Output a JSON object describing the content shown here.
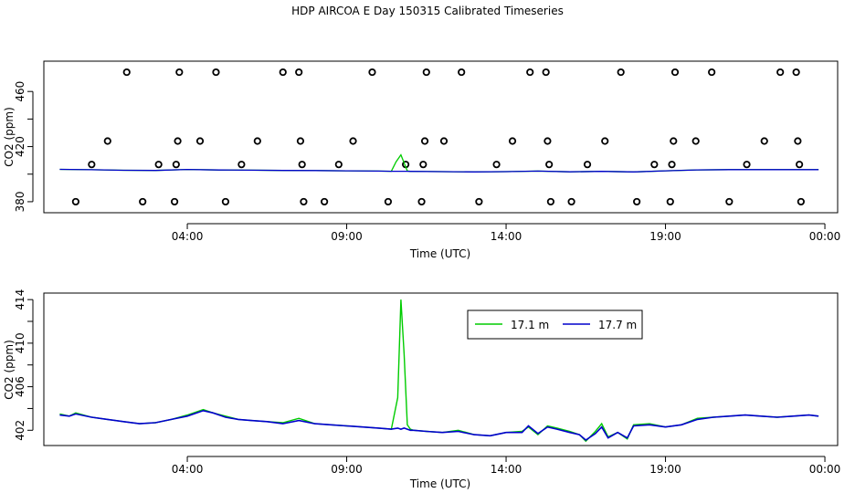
{
  "title": "HDP AIRCOA E  Day 150315  Calibrated Timeseries",
  "colors": {
    "series_a": "#00cc00",
    "series_b": "#0000cc",
    "axis": "#000000",
    "markers": "#000000"
  },
  "chart_data": [
    {
      "type": "scatter+line",
      "panel": "top",
      "xlabel": "Time (UTC)",
      "ylabel": "CO2 (ppm)",
      "xlim": [
        -0.5,
        24.4
      ],
      "ylim": [
        372,
        482
      ],
      "xticks": [
        {
          "value": 4,
          "label": "04:00"
        },
        {
          "value": 9,
          "label": "09:00"
        },
        {
          "value": 14,
          "label": "14:00"
        },
        {
          "value": 19,
          "label": "19:00"
        },
        {
          "value": 24,
          "label": "00:00"
        }
      ],
      "yticks": [
        {
          "value": 380,
          "label": "380"
        },
        {
          "value": 400,
          "label": ""
        },
        {
          "value": 420,
          "label": "420"
        },
        {
          "value": 440,
          "label": ""
        },
        {
          "value": 460,
          "label": "460"
        }
      ],
      "markers": [
        {
          "x": 0.5,
          "y": 380
        },
        {
          "x": 1.0,
          "y": 407
        },
        {
          "x": 1.5,
          "y": 424
        },
        {
          "x": 2.1,
          "y": 474
        },
        {
          "x": 2.6,
          "y": 380
        },
        {
          "x": 3.1,
          "y": 407
        },
        {
          "x": 3.6,
          "y": 380
        },
        {
          "x": 3.65,
          "y": 407
        },
        {
          "x": 3.7,
          "y": 424
        },
        {
          "x": 3.75,
          "y": 474
        },
        {
          "x": 4.4,
          "y": 424
        },
        {
          "x": 4.9,
          "y": 474
        },
        {
          "x": 5.2,
          "y": 380
        },
        {
          "x": 5.7,
          "y": 407
        },
        {
          "x": 6.2,
          "y": 424
        },
        {
          "x": 7.0,
          "y": 474
        },
        {
          "x": 7.5,
          "y": 474
        },
        {
          "x": 7.55,
          "y": 424
        },
        {
          "x": 7.6,
          "y": 407
        },
        {
          "x": 7.65,
          "y": 380
        },
        {
          "x": 8.3,
          "y": 380
        },
        {
          "x": 8.75,
          "y": 407
        },
        {
          "x": 9.2,
          "y": 424
        },
        {
          "x": 9.8,
          "y": 474
        },
        {
          "x": 10.3,
          "y": 380
        },
        {
          "x": 10.85,
          "y": 407
        },
        {
          "x": 11.35,
          "y": 380
        },
        {
          "x": 11.4,
          "y": 407
        },
        {
          "x": 11.45,
          "y": 424
        },
        {
          "x": 11.5,
          "y": 474
        },
        {
          "x": 12.05,
          "y": 424
        },
        {
          "x": 12.6,
          "y": 474
        },
        {
          "x": 13.15,
          "y": 380
        },
        {
          "x": 13.7,
          "y": 407
        },
        {
          "x": 14.2,
          "y": 424
        },
        {
          "x": 14.75,
          "y": 474
        },
        {
          "x": 15.25,
          "y": 474
        },
        {
          "x": 15.3,
          "y": 424
        },
        {
          "x": 15.35,
          "y": 407
        },
        {
          "x": 15.4,
          "y": 380
        },
        {
          "x": 16.05,
          "y": 380
        },
        {
          "x": 16.55,
          "y": 407
        },
        {
          "x": 17.1,
          "y": 424
        },
        {
          "x": 17.6,
          "y": 474
        },
        {
          "x": 18.1,
          "y": 380
        },
        {
          "x": 18.65,
          "y": 407
        },
        {
          "x": 19.15,
          "y": 380
        },
        {
          "x": 19.2,
          "y": 407
        },
        {
          "x": 19.25,
          "y": 424
        },
        {
          "x": 19.3,
          "y": 474
        },
        {
          "x": 19.95,
          "y": 424
        },
        {
          "x": 20.45,
          "y": 474
        },
        {
          "x": 21.0,
          "y": 380
        },
        {
          "x": 21.55,
          "y": 407
        },
        {
          "x": 22.1,
          "y": 424
        },
        {
          "x": 22.6,
          "y": 474
        },
        {
          "x": 23.1,
          "y": 474
        },
        {
          "x": 23.15,
          "y": 424
        },
        {
          "x": 23.2,
          "y": 407
        },
        {
          "x": 23.25,
          "y": 380
        }
      ]
    },
    {
      "type": "line",
      "panel": "bottom",
      "xlabel": "Time (UTC)",
      "ylabel": "CO2 (ppm)",
      "xlim": [
        -0.5,
        24.4
      ],
      "ylim": [
        400.6,
        414.6
      ],
      "xticks": [
        {
          "value": 4,
          "label": "04:00"
        },
        {
          "value": 9,
          "label": "09:00"
        },
        {
          "value": 14,
          "label": "14:00"
        },
        {
          "value": 19,
          "label": "19:00"
        },
        {
          "value": 24,
          "label": "00:00"
        }
      ],
      "yticks": [
        {
          "value": 402,
          "label": "402"
        },
        {
          "value": 404,
          "label": ""
        },
        {
          "value": 406,
          "label": "406"
        },
        {
          "value": 408,
          "label": ""
        },
        {
          "value": 410,
          "label": "410"
        },
        {
          "value": 412,
          "label": ""
        },
        {
          "value": 414,
          "label": "414"
        }
      ],
      "legend": {
        "placement": "top-center"
      },
      "series": [
        {
          "name": "17.1 m",
          "color": "#00cc00",
          "x": [
            0,
            0.3,
            0.5,
            1,
            1.5,
            2,
            2.5,
            3,
            3.5,
            4,
            4.5,
            4.8,
            5.2,
            5.6,
            6,
            6.5,
            7,
            7.5,
            8,
            8.5,
            9,
            9.5,
            10,
            10.4,
            10.6,
            10.7,
            10.8,
            10.9,
            11.0,
            11.1,
            11.5,
            12,
            12.5,
            13,
            13.5,
            14,
            14.5,
            14.7,
            15,
            15.3,
            15.6,
            16,
            16.3,
            16.5,
            16.8,
            17.0,
            17.2,
            17.5,
            17.8,
            18,
            18.5,
            19,
            19.5,
            20,
            20.5,
            21,
            21.5,
            22,
            22.5,
            23,
            23.5,
            23.8
          ],
          "values": [
            403.5,
            403.3,
            403.6,
            403.2,
            403.0,
            402.8,
            402.6,
            402.7,
            403.0,
            403.4,
            403.9,
            403.6,
            403.3,
            403.0,
            402.9,
            402.8,
            402.7,
            403.1,
            402.6,
            402.5,
            402.4,
            402.3,
            402.2,
            402.1,
            405.0,
            414.0,
            409.0,
            402.5,
            402.1,
            402.0,
            401.9,
            401.8,
            402.0,
            401.6,
            401.5,
            401.8,
            401.9,
            402.3,
            401.6,
            402.4,
            402.2,
            401.9,
            401.6,
            401.0,
            401.9,
            402.6,
            401.4,
            401.8,
            401.2,
            402.5,
            402.6,
            402.3,
            402.5,
            403.1,
            403.2,
            403.3,
            403.4,
            403.3,
            403.2,
            403.3,
            403.4,
            403.3
          ]
        },
        {
          "name": "17.7 m",
          "color": "#0000cc",
          "x": [
            0,
            0.3,
            0.5,
            1,
            1.5,
            2,
            2.5,
            3,
            3.5,
            4,
            4.5,
            4.8,
            5.2,
            5.6,
            6,
            6.5,
            7,
            7.5,
            8,
            8.5,
            9,
            9.5,
            10,
            10.4,
            10.6,
            10.7,
            10.8,
            10.9,
            11.0,
            11.1,
            11.5,
            12,
            12.5,
            13,
            13.5,
            14,
            14.5,
            14.7,
            15,
            15.3,
            15.6,
            16,
            16.3,
            16.5,
            16.8,
            17.0,
            17.2,
            17.5,
            17.8,
            18,
            18.5,
            19,
            19.5,
            20,
            20.5,
            21,
            21.5,
            22,
            22.5,
            23,
            23.5,
            23.8
          ],
          "values": [
            403.4,
            403.3,
            403.5,
            403.2,
            403.0,
            402.8,
            402.6,
            402.7,
            403.0,
            403.3,
            403.8,
            403.6,
            403.2,
            403.0,
            402.9,
            402.8,
            402.6,
            402.9,
            402.6,
            402.5,
            402.4,
            402.3,
            402.2,
            402.1,
            402.2,
            402.1,
            402.2,
            402.1,
            402.0,
            402.0,
            401.9,
            401.8,
            401.9,
            401.6,
            401.5,
            401.8,
            401.8,
            402.4,
            401.7,
            402.3,
            402.1,
            401.8,
            401.6,
            401.1,
            401.7,
            402.3,
            401.3,
            401.8,
            401.3,
            402.4,
            402.5,
            402.3,
            402.5,
            403.0,
            403.2,
            403.3,
            403.4,
            403.3,
            403.2,
            403.3,
            403.4,
            403.3
          ]
        }
      ]
    }
  ],
  "top_line": {
    "x": [
      0,
      1,
      2,
      3,
      4,
      5,
      6,
      7,
      8,
      9,
      10,
      10.4,
      10.55,
      10.7,
      10.9,
      11,
      12,
      13,
      14,
      15,
      16,
      17,
      18,
      19,
      20,
      21,
      22,
      23,
      23.8
    ],
    "values": [
      403.5,
      403.2,
      402.8,
      402.7,
      403.4,
      403.0,
      402.9,
      402.7,
      402.6,
      402.4,
      402.2,
      402.1,
      409.0,
      414.0,
      402.3,
      402.0,
      401.8,
      401.6,
      401.8,
      402.2,
      401.7,
      402.0,
      401.6,
      402.4,
      403.1,
      403.3,
      403.3,
      403.3,
      403.3
    ]
  }
}
